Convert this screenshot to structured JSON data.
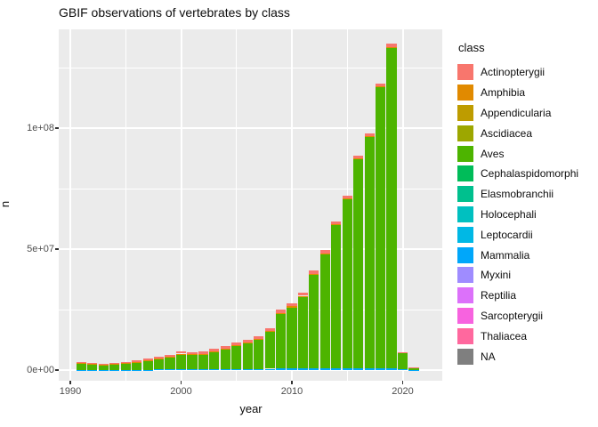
{
  "title": "GBIF observations of vertebrates by class",
  "axes": {
    "x": {
      "label": "year",
      "major_ticks": [
        {
          "value": 1990,
          "label": "1990"
        },
        {
          "value": 2000,
          "label": "2000"
        },
        {
          "value": 2010,
          "label": "2010"
        },
        {
          "value": 2020,
          "label": "2020"
        }
      ],
      "minor_ticks": [
        1995,
        2005,
        2015
      ]
    },
    "y": {
      "label": "n",
      "major_ticks": [
        {
          "value": 0,
          "label": "0e+00"
        },
        {
          "value": 50000000,
          "label": "5e+07"
        },
        {
          "value": 100000000,
          "label": "1e+08"
        }
      ],
      "minor_ticks": [
        25000000,
        75000000,
        125000000
      ]
    }
  },
  "legend": {
    "title": "class",
    "entries": [
      {
        "label": "Actinopterygii",
        "color": "#F8766D"
      },
      {
        "label": "Amphibia",
        "color": "#E18A00"
      },
      {
        "label": "Appendicularia",
        "color": "#BE9C00"
      },
      {
        "label": "Ascidiacea",
        "color": "#9DA700"
      },
      {
        "label": "Aves",
        "color": "#4DB400"
      },
      {
        "label": "Cephalaspidomorphi",
        "color": "#00BC59"
      },
      {
        "label": "Elasmobranchii",
        "color": "#00C08E"
      },
      {
        "label": "Holocephali",
        "color": "#00C0C0"
      },
      {
        "label": "Leptocardii",
        "color": "#00B8E5"
      },
      {
        "label": "Mammalia",
        "color": "#00A7FA"
      },
      {
        "label": "Myxini",
        "color": "#9F8CFF"
      },
      {
        "label": "Reptilia",
        "color": "#DC71FA"
      },
      {
        "label": "Sarcopterygii",
        "color": "#F763DF"
      },
      {
        "label": "Thaliacea",
        "color": "#FF689E"
      },
      {
        "label": "NA",
        "color": "#7F7F7F"
      }
    ]
  },
  "colors": {
    "panel_bg": "#EBEBEB",
    "grid": "#FFFFFF",
    "tick_text": "#4D4D4D",
    "text": "#0D0D0D"
  },
  "chart_data": {
    "type": "bar",
    "stacked": true,
    "title": "GBIF observations of vertebrates by class",
    "xlabel": "year",
    "ylabel": "n",
    "ylim": [
      0,
      140000000
    ],
    "grid": "on",
    "legend_position": "right",
    "x": [
      1991,
      1992,
      1993,
      1994,
      1995,
      1996,
      1997,
      1998,
      1999,
      2000,
      2001,
      2002,
      2003,
      2004,
      2005,
      2006,
      2007,
      2008,
      2009,
      2010,
      2011,
      2012,
      2013,
      2014,
      2015,
      2016,
      2017,
      2018,
      2019,
      2020,
      2021
    ],
    "series": [
      {
        "name": "Mammalia",
        "color": "#00A7FA",
        "values": [
          100000,
          100000,
          100000,
          100000,
          100000,
          150000,
          150000,
          200000,
          300000,
          400000,
          400000,
          400000,
          400000,
          450000,
          450000,
          500000,
          500000,
          550000,
          600000,
          600000,
          650000,
          700000,
          700000,
          700000,
          700000,
          700000,
          700000,
          700000,
          700000,
          200000,
          40000
        ]
      },
      {
        "name": "Aves",
        "color": "#4DB400",
        "values": [
          2600000,
          2200000,
          2000000,
          2200000,
          2600000,
          2950000,
          3650000,
          4250000,
          5050000,
          6200000,
          5900000,
          6100000,
          7200000,
          8300000,
          9700000,
          10600000,
          11900000,
          15200000,
          22500000,
          25300000,
          29650000,
          38700000,
          47200000,
          59100000,
          70000000,
          86500000,
          95700000,
          116200000,
          132500000,
          6900000,
          1080000
        ]
      },
      {
        "name": "Amphibia",
        "color": "#E18A00",
        "values": [
          100000,
          100000,
          100000,
          100000,
          100000,
          100000,
          100000,
          150000,
          150000,
          200000,
          200000,
          200000,
          200000,
          250000,
          250000,
          300000,
          300000,
          350000,
          400000,
          400000,
          400000,
          400000,
          400000,
          400000,
          400000,
          400000,
          400000,
          400000,
          400000,
          100000,
          20000
        ]
      },
      {
        "name": "Actinopterygii",
        "color": "#F8766D",
        "values": [
          600000,
          500000,
          500000,
          500000,
          600000,
          700000,
          800000,
          800000,
          900000,
          1000000,
          900000,
          900000,
          1000000,
          1000000,
          1100000,
          1100000,
          1200000,
          1300000,
          1600000,
          1400000,
          1300000,
          1200000,
          1200000,
          1200000,
          1100000,
          1100000,
          1100000,
          1200000,
          1300000,
          300000,
          60000
        ]
      }
    ],
    "note": "Stacked bottom-to-top: Mammalia, Aves, Amphibia, Actinopterygii. Remaining legend classes have values too small to be visible at this scale."
  }
}
